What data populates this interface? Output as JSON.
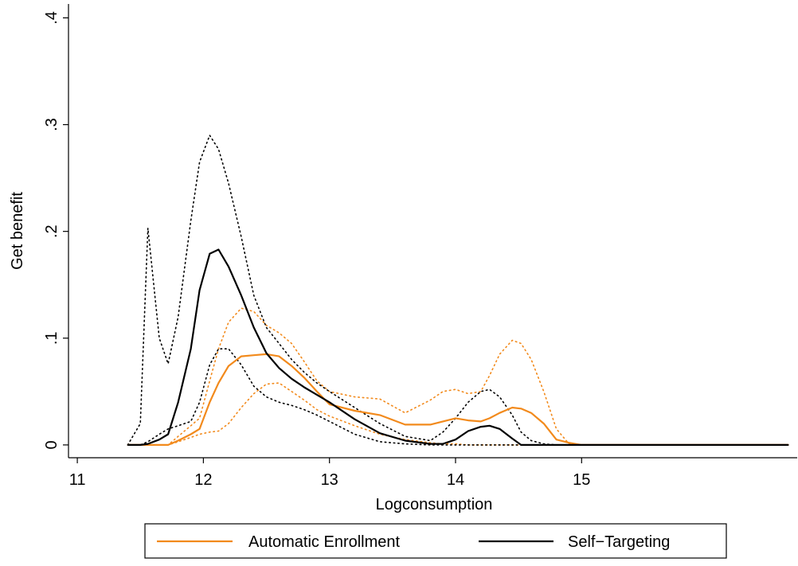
{
  "chart_data": {
    "type": "line",
    "x_label": "Logconsumption",
    "y_label": "Get benefit",
    "x": [
      11.4,
      11.5,
      11.56,
      11.65,
      11.72,
      11.8,
      11.9,
      11.97,
      12.05,
      12.12,
      12.2,
      12.3,
      12.4,
      12.5,
      12.6,
      12.7,
      12.8,
      12.9,
      13.0,
      13.2,
      13.4,
      13.6,
      13.8,
      13.9,
      14.0,
      14.1,
      14.2,
      14.27,
      14.35,
      14.45,
      14.52,
      14.6,
      14.7,
      14.8,
      14.9,
      15.0,
      15.5,
      16.0,
      16.64
    ],
    "series": [
      {
        "name": "Automatic Enrollment",
        "color": "#f28a1c",
        "values": [
          0,
          0,
          0,
          0,
          0,
          0.004,
          0.01,
          0.015,
          0.04,
          0.058,
          0.074,
          0.083,
          0.084,
          0.085,
          0.083,
          0.074,
          0.063,
          0.05,
          0.038,
          0.032,
          0.028,
          0.019,
          0.019,
          0.022,
          0.025,
          0.023,
          0.022,
          0.025,
          0.03,
          0.035,
          0.034,
          0.03,
          0.02,
          0.005,
          0.002,
          0,
          0,
          0,
          0
        ],
        "upper": [
          0,
          0,
          0,
          0,
          0,
          0.008,
          0.018,
          0.025,
          0.06,
          0.09,
          0.115,
          0.128,
          0.125,
          0.112,
          0.105,
          0.095,
          0.078,
          0.06,
          0.05,
          0.045,
          0.043,
          0.03,
          0.042,
          0.05,
          0.052,
          0.048,
          0.05,
          0.065,
          0.085,
          0.098,
          0.095,
          0.08,
          0.05,
          0.015,
          0.001,
          0,
          0,
          0,
          0
        ],
        "lower": [
          0,
          0,
          0,
          0,
          0,
          0.003,
          0.007,
          0.01,
          0.012,
          0.013,
          0.02,
          0.035,
          0.048,
          0.057,
          0.058,
          0.05,
          0.042,
          0.033,
          0.027,
          0.018,
          0.01,
          0.005,
          0.002,
          0.001,
          0.001,
          0,
          0,
          0,
          0,
          0,
          0,
          0,
          0,
          0,
          0,
          0,
          0,
          0,
          0
        ]
      },
      {
        "name": "Self−Targeting",
        "color": "#000000",
        "values": [
          0,
          0,
          0.001,
          0.005,
          0.01,
          0.04,
          0.09,
          0.145,
          0.179,
          0.183,
          0.167,
          0.14,
          0.11,
          0.086,
          0.072,
          0.062,
          0.054,
          0.047,
          0.04,
          0.024,
          0.011,
          0.004,
          0.001,
          0.001,
          0.005,
          0.013,
          0.017,
          0.018,
          0.015,
          0.006,
          0,
          0,
          0,
          0,
          0,
          0,
          0,
          0,
          0
        ],
        "upper": [
          0,
          0.02,
          0.203,
          0.1,
          0.076,
          0.12,
          0.21,
          0.265,
          0.29,
          0.277,
          0.245,
          0.195,
          0.14,
          0.11,
          0.095,
          0.08,
          0.068,
          0.058,
          0.05,
          0.035,
          0.02,
          0.008,
          0.004,
          0.012,
          0.025,
          0.04,
          0.05,
          0.052,
          0.045,
          0.028,
          0.012,
          0.004,
          0.001,
          0,
          0,
          0,
          0,
          0,
          0
        ],
        "lower": [
          0,
          0,
          0.003,
          0.01,
          0.015,
          0.018,
          0.022,
          0.04,
          0.075,
          0.09,
          0.09,
          0.075,
          0.055,
          0.045,
          0.04,
          0.037,
          0.033,
          0.028,
          0.022,
          0.01,
          0.003,
          0.001,
          0,
          0,
          0,
          0,
          0,
          0,
          0,
          0,
          0,
          0,
          0,
          0,
          0,
          0,
          0,
          0,
          0
        ]
      }
    ],
    "xlim": [
      10.93,
      16.71
    ],
    "xticks": [
      11,
      12,
      13,
      14,
      15
    ],
    "ylim": [
      -0.012,
      0.413
    ],
    "yticks": [
      {
        "value": 0,
        "label": "0"
      },
      {
        "value": 0.1,
        "label": ".1"
      },
      {
        "value": 0.2,
        "label": ".2"
      },
      {
        "value": 0.3,
        "label": ".3"
      },
      {
        "value": 0.4,
        "label": ".4"
      }
    ]
  }
}
